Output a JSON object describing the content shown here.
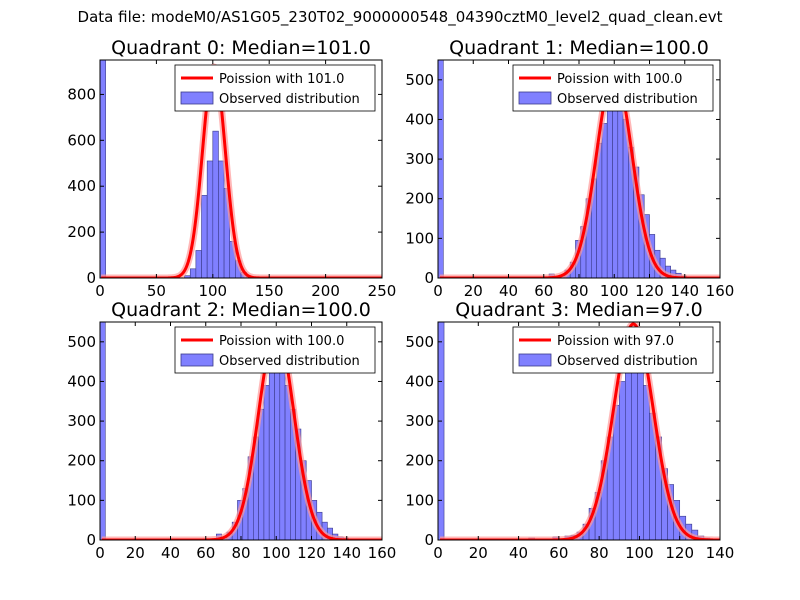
{
  "figure_title": "Data file: modeM0/AS1G05_230T02_9000000548_04390cztM0_level2_quad_clean.evt",
  "chart_data": [
    {
      "type": "bar",
      "title": "Quadrant 0: Median=101.0",
      "xlim": [
        0,
        250
      ],
      "ylim": [
        0,
        950
      ],
      "xticks": [
        0,
        50,
        100,
        150,
        200,
        250
      ],
      "yticks": [
        0,
        200,
        400,
        600,
        800
      ],
      "bin_width": 5,
      "bins": [
        {
          "x": 0,
          "value": 950
        },
        {
          "x": 75,
          "value": 10
        },
        {
          "x": 80,
          "value": 40
        },
        {
          "x": 85,
          "value": 120
        },
        {
          "x": 90,
          "value": 360
        },
        {
          "x": 95,
          "value": 510
        },
        {
          "x": 100,
          "value": 640
        },
        {
          "x": 105,
          "value": 510
        },
        {
          "x": 110,
          "value": 390
        },
        {
          "x": 115,
          "value": 160
        },
        {
          "x": 120,
          "value": 75
        },
        {
          "x": 125,
          "value": 25
        },
        {
          "x": 130,
          "value": 8
        }
      ],
      "curve_mu": 101.0,
      "curve_peak": 920,
      "legend": [
        "Poission with 101.0",
        "Observed distribution"
      ]
    },
    {
      "type": "bar",
      "title": "Quadrant 1: Median=100.0",
      "xlim": [
        0,
        160
      ],
      "ylim": [
        0,
        550
      ],
      "xticks": [
        0,
        20,
        40,
        60,
        80,
        100,
        120,
        140,
        160
      ],
      "yticks": [
        0,
        100,
        200,
        300,
        400,
        500
      ],
      "bin_width": 3,
      "bins": [
        {
          "x": 0,
          "value": 550
        },
        {
          "x": 63,
          "value": 10
        },
        {
          "x": 66,
          "value": 5
        },
        {
          "x": 69,
          "value": 8
        },
        {
          "x": 72,
          "value": 20
        },
        {
          "x": 75,
          "value": 40
        },
        {
          "x": 78,
          "value": 95
        },
        {
          "x": 81,
          "value": 130
        },
        {
          "x": 84,
          "value": 200
        },
        {
          "x": 87,
          "value": 250
        },
        {
          "x": 90,
          "value": 340
        },
        {
          "x": 93,
          "value": 390
        },
        {
          "x": 96,
          "value": 430
        },
        {
          "x": 99,
          "value": 480
        },
        {
          "x": 102,
          "value": 440
        },
        {
          "x": 105,
          "value": 400
        },
        {
          "x": 108,
          "value": 330
        },
        {
          "x": 111,
          "value": 280
        },
        {
          "x": 114,
          "value": 210
        },
        {
          "x": 117,
          "value": 160
        },
        {
          "x": 120,
          "value": 110
        },
        {
          "x": 123,
          "value": 70
        },
        {
          "x": 126,
          "value": 50
        },
        {
          "x": 129,
          "value": 30
        },
        {
          "x": 132,
          "value": 20
        },
        {
          "x": 135,
          "value": 12
        },
        {
          "x": 138,
          "value": 5
        }
      ],
      "curve_mu": 100.0,
      "curve_peak": 520,
      "legend": [
        "Poission with 100.0",
        "Observed distribution"
      ]
    },
    {
      "type": "bar",
      "title": "Quadrant 2: Median=100.0",
      "xlim": [
        0,
        160
      ],
      "ylim": [
        0,
        550
      ],
      "xticks": [
        0,
        20,
        40,
        60,
        80,
        100,
        120,
        140,
        160
      ],
      "yticks": [
        0,
        100,
        200,
        300,
        400,
        500
      ],
      "bin_width": 3,
      "bins": [
        {
          "x": 0,
          "value": 550
        },
        {
          "x": 66,
          "value": 15
        },
        {
          "x": 69,
          "value": 8
        },
        {
          "x": 72,
          "value": 20
        },
        {
          "x": 75,
          "value": 45
        },
        {
          "x": 78,
          "value": 100
        },
        {
          "x": 81,
          "value": 130
        },
        {
          "x": 84,
          "value": 210
        },
        {
          "x": 87,
          "value": 260
        },
        {
          "x": 90,
          "value": 330
        },
        {
          "x": 93,
          "value": 390
        },
        {
          "x": 96,
          "value": 440
        },
        {
          "x": 99,
          "value": 480
        },
        {
          "x": 102,
          "value": 450
        },
        {
          "x": 105,
          "value": 390
        },
        {
          "x": 108,
          "value": 330
        },
        {
          "x": 111,
          "value": 280
        },
        {
          "x": 114,
          "value": 200
        },
        {
          "x": 117,
          "value": 150
        },
        {
          "x": 120,
          "value": 100
        },
        {
          "x": 123,
          "value": 70
        },
        {
          "x": 126,
          "value": 45
        },
        {
          "x": 129,
          "value": 30
        },
        {
          "x": 132,
          "value": 15
        },
        {
          "x": 135,
          "value": 8
        },
        {
          "x": 138,
          "value": 5
        }
      ],
      "curve_mu": 100.0,
      "curve_peak": 530,
      "legend": [
        "Poission with 100.0",
        "Observed distribution"
      ]
    },
    {
      "type": "bar",
      "title": "Quadrant 3: Median=97.0",
      "xlim": [
        0,
        140
      ],
      "ylim": [
        0,
        550
      ],
      "xticks": [
        0,
        20,
        40,
        60,
        80,
        100,
        120,
        140
      ],
      "yticks": [
        0,
        100,
        200,
        300,
        400,
        500
      ],
      "bin_width": 3,
      "bins": [
        {
          "x": 0,
          "value": 550
        },
        {
          "x": 45,
          "value": 5
        },
        {
          "x": 57,
          "value": 8
        },
        {
          "x": 63,
          "value": 10
        },
        {
          "x": 66,
          "value": 12
        },
        {
          "x": 69,
          "value": 20
        },
        {
          "x": 72,
          "value": 40
        },
        {
          "x": 75,
          "value": 80
        },
        {
          "x": 78,
          "value": 120
        },
        {
          "x": 81,
          "value": 200
        },
        {
          "x": 84,
          "value": 260
        },
        {
          "x": 87,
          "value": 340
        },
        {
          "x": 90,
          "value": 400
        },
        {
          "x": 93,
          "value": 450
        },
        {
          "x": 96,
          "value": 480
        },
        {
          "x": 99,
          "value": 430
        },
        {
          "x": 102,
          "value": 390
        },
        {
          "x": 105,
          "value": 320
        },
        {
          "x": 108,
          "value": 260
        },
        {
          "x": 111,
          "value": 180
        },
        {
          "x": 114,
          "value": 140
        },
        {
          "x": 117,
          "value": 100
        },
        {
          "x": 120,
          "value": 60
        },
        {
          "x": 123,
          "value": 40
        },
        {
          "x": 126,
          "value": 25
        },
        {
          "x": 129,
          "value": 10
        },
        {
          "x": 132,
          "value": 5
        }
      ],
      "curve_mu": 97.0,
      "curve_peak": 545,
      "legend": [
        "Poission with 97.0",
        "Observed distribution"
      ]
    }
  ],
  "colors": {
    "bar_fill": "#8080ff",
    "bar_edge": "#3a3a8a",
    "curve": "#ff0000",
    "curve_glow": "#ff9a9a",
    "axes": "#000000"
  }
}
